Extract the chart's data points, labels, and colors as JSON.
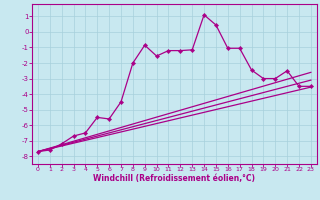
{
  "xlabel": "Windchill (Refroidissement éolien,°C)",
  "bg_color": "#c8e8f0",
  "grid_color": "#a8d0dc",
  "line_color": "#aa0088",
  "xlim": [
    -0.5,
    23.5
  ],
  "ylim": [
    -8.5,
    1.8
  ],
  "yticks": [
    1,
    0,
    -1,
    -2,
    -3,
    -4,
    -5,
    -6,
    -7,
    -8
  ],
  "xticks": [
    0,
    1,
    2,
    3,
    4,
    5,
    6,
    7,
    8,
    9,
    10,
    11,
    12,
    13,
    14,
    15,
    16,
    17,
    18,
    19,
    20,
    21,
    22,
    23
  ],
  "line1_x": [
    0,
    1,
    2,
    3,
    4,
    5,
    6,
    7,
    8,
    9,
    10,
    11,
    12,
    13,
    14,
    15,
    16,
    17,
    18,
    19,
    20,
    21,
    22,
    23
  ],
  "line1_y": [
    -7.7,
    -7.6,
    -7.2,
    -6.7,
    -6.5,
    -5.5,
    -5.6,
    -4.5,
    -2.0,
    -0.85,
    -1.55,
    -1.2,
    -1.2,
    -1.15,
    1.1,
    0.45,
    -1.05,
    -1.05,
    -2.45,
    -3.0,
    -3.0,
    -2.5,
    -3.5,
    -3.5
  ],
  "line2_x": [
    0,
    23
  ],
  "line2_y": [
    -7.7,
    -2.6
  ],
  "line3_x": [
    0,
    23
  ],
  "line3_y": [
    -7.7,
    -3.1
  ],
  "line4_x": [
    0,
    23
  ],
  "line4_y": [
    -7.7,
    -3.55
  ]
}
